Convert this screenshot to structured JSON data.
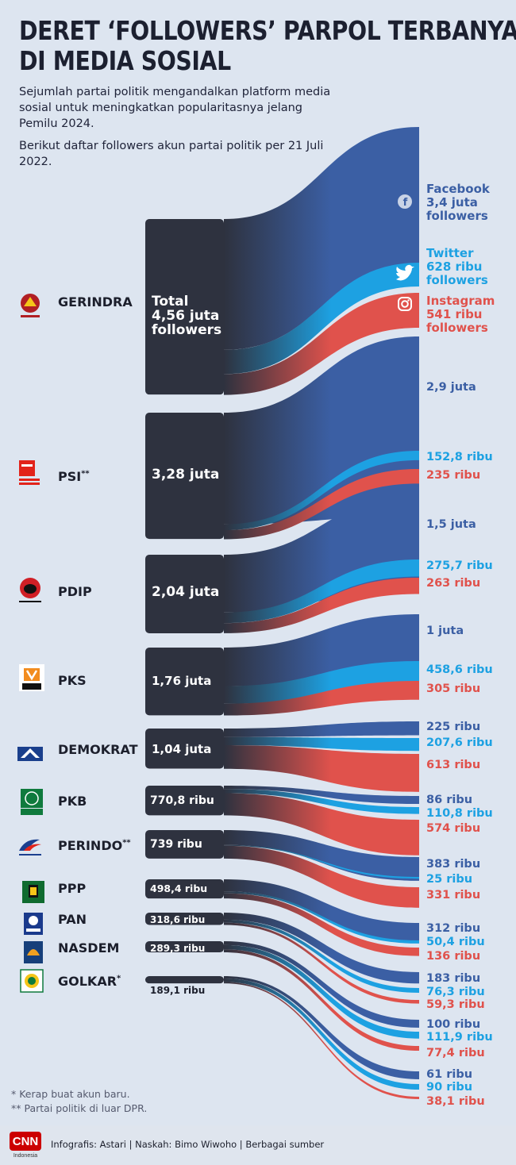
{
  "title": "DERET ‘FOLLOWERS’ PARPOL TERBANYAK DI MEDIA SOSIAL",
  "title_line1": "DERET ‘FOLLOWERS’ PARPOL TERBANYAK",
  "title_line2": "DI MEDIA SOSIAL",
  "intro_1": "Sejumlah partai politik mengandalkan platform media sosial untuk meningkatkan popularitasnya jelang Pemilu 2024.",
  "intro_2": "Berikut daftar followers akun partai politik  per 21 Juli 2022.",
  "colors": {
    "facebook": "#3b5fa4",
    "twitter": "#1da1e2",
    "instagram": "#e0524c",
    "party": "#2e323f",
    "background": "#dde5f0"
  },
  "platforms": [
    {
      "key": "facebook",
      "name": "Facebook",
      "icon": "facebook-icon",
      "value_text": "3,4 juta",
      "unit": "followers"
    },
    {
      "key": "twitter",
      "name": "Twitter",
      "icon": "twitter-icon",
      "value_text": "628 ribu",
      "unit": "followers"
    },
    {
      "key": "instagram",
      "name": "Instagram",
      "icon": "instagram-icon",
      "value_text": "541 ribu",
      "unit": "followers"
    }
  ],
  "gerindra_total_label": [
    "Total",
    "4,56 juta",
    "followers"
  ],
  "chart_data": {
    "type": "sankey",
    "title": "DERET ‘FOLLOWERS’ PARPOL TERBANYAK DI MEDIA SOSIAL",
    "unit": "followers",
    "series": [
      {
        "name": "Facebook",
        "color": "#3b5fa4"
      },
      {
        "name": "Twitter",
        "color": "#1da1e2"
      },
      {
        "name": "Instagram",
        "color": "#e0524c"
      }
    ],
    "parties": [
      {
        "name": "GERINDRA",
        "mark": "",
        "total": 4560000,
        "total_label": "4,56 juta",
        "logo": "gerindra-logo",
        "facebook": 3400000,
        "facebook_label": "3,4 juta",
        "twitter": 628000,
        "twitter_label": "628 ribu",
        "instagram": 541000,
        "instagram_label": "541 ribu"
      },
      {
        "name": "PSI",
        "mark": "**",
        "total": 3280000,
        "total_label": "3,28 juta",
        "logo": "psi-logo",
        "facebook": 2900000,
        "facebook_label": "2,9 juta",
        "twitter": 152800,
        "twitter_label": "152,8 ribu",
        "instagram": 235000,
        "instagram_label": "235 ribu"
      },
      {
        "name": "PDIP",
        "mark": "",
        "total": 2040000,
        "total_label": "2,04 juta",
        "logo": "pdip-logo",
        "facebook": 1500000,
        "facebook_label": "1,5 juta",
        "twitter": 275700,
        "twitter_label": "275,7 ribu",
        "instagram": 263000,
        "instagram_label": "263 ribu"
      },
      {
        "name": "PKS",
        "mark": "",
        "total": 1760000,
        "total_label": "1,76 juta",
        "logo": "pks-logo",
        "facebook": 1000000,
        "facebook_label": "1 juta",
        "twitter": 458600,
        "twitter_label": "458,6 ribu",
        "instagram": 305000,
        "instagram_label": "305 ribu"
      },
      {
        "name": "DEMOKRAT",
        "mark": "",
        "total": 1040000,
        "total_label": "1,04 juta",
        "logo": "demokrat-logo",
        "facebook": 225000,
        "facebook_label": "225 ribu",
        "twitter": 207600,
        "twitter_label": "207,6 ribu",
        "instagram": 613000,
        "instagram_label": "613 ribu"
      },
      {
        "name": "PKB",
        "mark": "",
        "total": 770800,
        "total_label": "770,8 ribu",
        "logo": "pkb-logo",
        "facebook": 86000,
        "facebook_label": "86 ribu",
        "twitter": 110800,
        "twitter_label": "110,8 ribu",
        "instagram": 574000,
        "instagram_label": "574 ribu"
      },
      {
        "name": "PERINDO",
        "mark": "**",
        "total": 739000,
        "total_label": "739 ribu",
        "logo": "perindo-logo",
        "facebook": 383000,
        "facebook_label": "383 ribu",
        "twitter": 25000,
        "twitter_label": "25 ribu",
        "instagram": 331000,
        "instagram_label": "331 ribu"
      },
      {
        "name": "PPP",
        "mark": "",
        "total": 498400,
        "total_label": "498,4 ribu",
        "logo": "ppp-logo",
        "facebook": 312000,
        "facebook_label": "312 ribu",
        "twitter": 50400,
        "twitter_label": "50,4 ribu",
        "instagram": 136000,
        "instagram_label": "136 ribu"
      },
      {
        "name": "PAN",
        "mark": "",
        "total": 318600,
        "total_label": "318,6 ribu",
        "logo": "pan-logo",
        "facebook": 183000,
        "facebook_label": "183 ribu",
        "twitter": 76300,
        "twitter_label": "76,3 ribu",
        "instagram": 59300,
        "instagram_label": "59,3 ribu"
      },
      {
        "name": "NASDEM",
        "mark": "",
        "total": 289300,
        "total_label": "289,3 ribu",
        "logo": "nasdem-logo",
        "facebook": 100000,
        "facebook_label": "100 ribu",
        "twitter": 111900,
        "twitter_label": "111,9 ribu",
        "instagram": 77400,
        "instagram_label": "77,4 ribu"
      },
      {
        "name": "GOLKAR",
        "mark": "*",
        "total": 189100,
        "total_label": "189,1 ribu",
        "logo": "golkar-logo",
        "facebook": 61000,
        "facebook_label": "61 ribu",
        "twitter": 90000,
        "twitter_label": "90 ribu",
        "instagram": 38100,
        "instagram_label": "38,1 ribu"
      }
    ]
  },
  "notes": [
    "*   Kerap buat akun baru.",
    "** Partai politik di luar DPR."
  ],
  "footer": {
    "brand": "CNN",
    "brand_sub": "Indonesia",
    "credit": "Infografis: Astari | Naskah: Bimo Wiwoho | Berbagai sumber"
  }
}
